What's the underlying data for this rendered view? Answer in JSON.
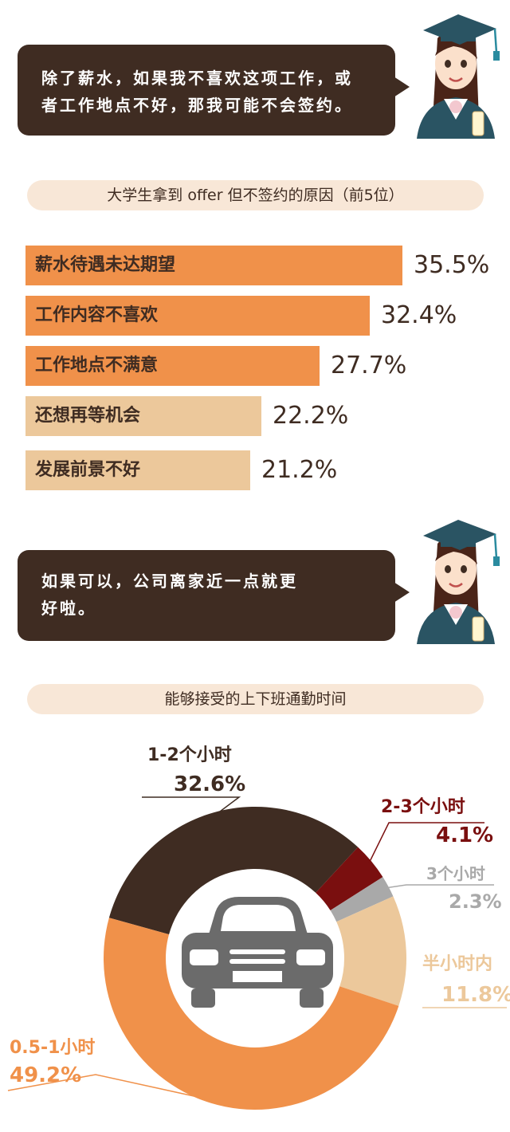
{
  "speech_1": {
    "line1": "除了薪水，如果我不喜欢这项工作，或",
    "line2": "者工作地点不好，那我可能不会签约。"
  },
  "speech_2": {
    "line1": "如果可以，公司离家近一点就更",
    "line2": "好啦。"
  },
  "colors": {
    "dark_brown": "#3f2c22",
    "orange": "#f0914a",
    "beige": "#ecc89b",
    "pill_bg": "#f8e7d7",
    "dark_red": "#7a0f0f",
    "gray": "#a9a9a9",
    "car": "#6b6b6b"
  },
  "chart_data": [
    {
      "type": "bar",
      "orientation": "horizontal",
      "title": "大学生拿到 offer 但不签约的原因（前5位）",
      "categories": [
        "薪水待遇未达期望",
        "工作内容不喜欢",
        "工作地点不满意",
        "还想再等机会",
        "发展前景不好"
      ],
      "values": [
        35.5,
        32.4,
        27.7,
        22.2,
        21.2
      ],
      "value_labels": [
        "35.5%",
        "32.4%",
        "27.7%",
        "22.2%",
        "21.2%"
      ],
      "bar_colors": [
        "#f0914a",
        "#f0914a",
        "#f0914a",
        "#ecc89b",
        "#ecc89b"
      ],
      "unit": "%"
    },
    {
      "type": "pie",
      "style": "donut",
      "center_icon": "car-icon",
      "title": "能够接受的上下班通勤时间",
      "slices": [
        {
          "label": "1-2个小时",
          "value": 32.6,
          "value_label": "32.6%",
          "color": "#3f2c22"
        },
        {
          "label": "2-3个小时",
          "value": 4.1,
          "value_label": "4.1%",
          "color": "#7a0f0f"
        },
        {
          "label": "3个小时",
          "value": 2.3,
          "value_label": "2.3%",
          "color": "#a9a9a9"
        },
        {
          "label": "半小时内",
          "value": 11.8,
          "value_label": "11.8%",
          "color": "#ecc89b"
        },
        {
          "label": "0.5-1小时",
          "value": 49.2,
          "value_label": "49.2%",
          "color": "#f0914a"
        }
      ]
    }
  ]
}
